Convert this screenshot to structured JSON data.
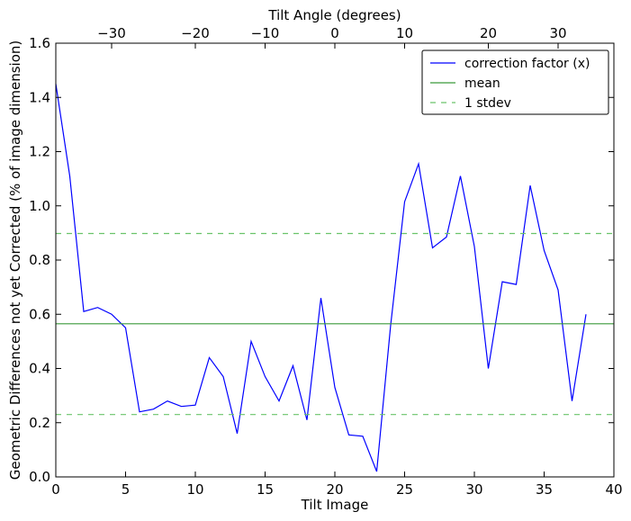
{
  "chart_data": {
    "type": "line",
    "title": "",
    "xlabel": "Tilt Image",
    "ylabel": "Geometric Differences not yet Corrected (% of image dimension)",
    "top_xlabel": "Tilt Angle (degrees)",
    "xlim": [
      0,
      40
    ],
    "ylim": [
      0,
      1.6
    ],
    "x_ticks": [
      0,
      5,
      10,
      15,
      20,
      25,
      30,
      35,
      40
    ],
    "x_tick_labels": [
      "0",
      "5",
      "10",
      "15",
      "20",
      "25",
      "30",
      "35",
      "40"
    ],
    "y_ticks": [
      0,
      0.2,
      0.4,
      0.6,
      0.8,
      1.0,
      1.2,
      1.4,
      1.6
    ],
    "y_tick_labels": [
      "0.0",
      "0.2",
      "0.4",
      "0.6",
      "0.8",
      "1.0",
      "1.2",
      "1.4",
      "1.6"
    ],
    "top_ticks": [
      {
        "at": 4,
        "label": "−30"
      },
      {
        "at": 10,
        "label": "−20"
      },
      {
        "at": 15,
        "label": "−10"
      },
      {
        "at": 20,
        "label": "0"
      },
      {
        "at": 25,
        "label": "10"
      },
      {
        "at": 31,
        "label": "20"
      },
      {
        "at": 36,
        "label": "30"
      }
    ],
    "grid": false,
    "legend_position": "top-right",
    "series": [
      {
        "name": "correction factor (x)",
        "color": "#0000ff",
        "style": "solid",
        "x": [
          0,
          1,
          2,
          3,
          4,
          5,
          6,
          7,
          8,
          9,
          10,
          11,
          12,
          13,
          14,
          15,
          16,
          17,
          18,
          19,
          20,
          21,
          22,
          23,
          24,
          25,
          26,
          27,
          28,
          29,
          30,
          31,
          32,
          33,
          34,
          35,
          36,
          37,
          38
        ],
        "y": [
          1.45,
          1.11,
          0.61,
          0.625,
          0.6,
          0.55,
          0.24,
          0.25,
          0.28,
          0.26,
          0.265,
          0.44,
          0.37,
          0.16,
          0.5,
          0.37,
          0.28,
          0.41,
          0.21,
          0.66,
          0.33,
          0.155,
          0.15,
          0.02,
          0.56,
          1.015,
          1.155,
          0.845,
          0.885,
          1.11,
          0.85,
          0.4,
          0.72,
          0.71,
          1.075,
          0.835,
          0.69,
          0.28,
          0.6
        ]
      },
      {
        "name": "mean",
        "color": "#3a9a3a",
        "style": "solid",
        "x": [
          0,
          40
        ],
        "y": [
          0.565,
          0.565
        ]
      },
      {
        "name": "1 stdev",
        "color": "#6ac46a",
        "style": "dashed",
        "x": [
          0,
          40
        ],
        "y": [
          0.898,
          0.898
        ]
      },
      {
        "name": "",
        "color": "#6ac46a",
        "style": "dashed",
        "x": [
          0,
          40
        ],
        "y": [
          0.23,
          0.23
        ]
      }
    ],
    "legend": [
      "correction factor (x)",
      "mean",
      "1 stdev"
    ]
  }
}
